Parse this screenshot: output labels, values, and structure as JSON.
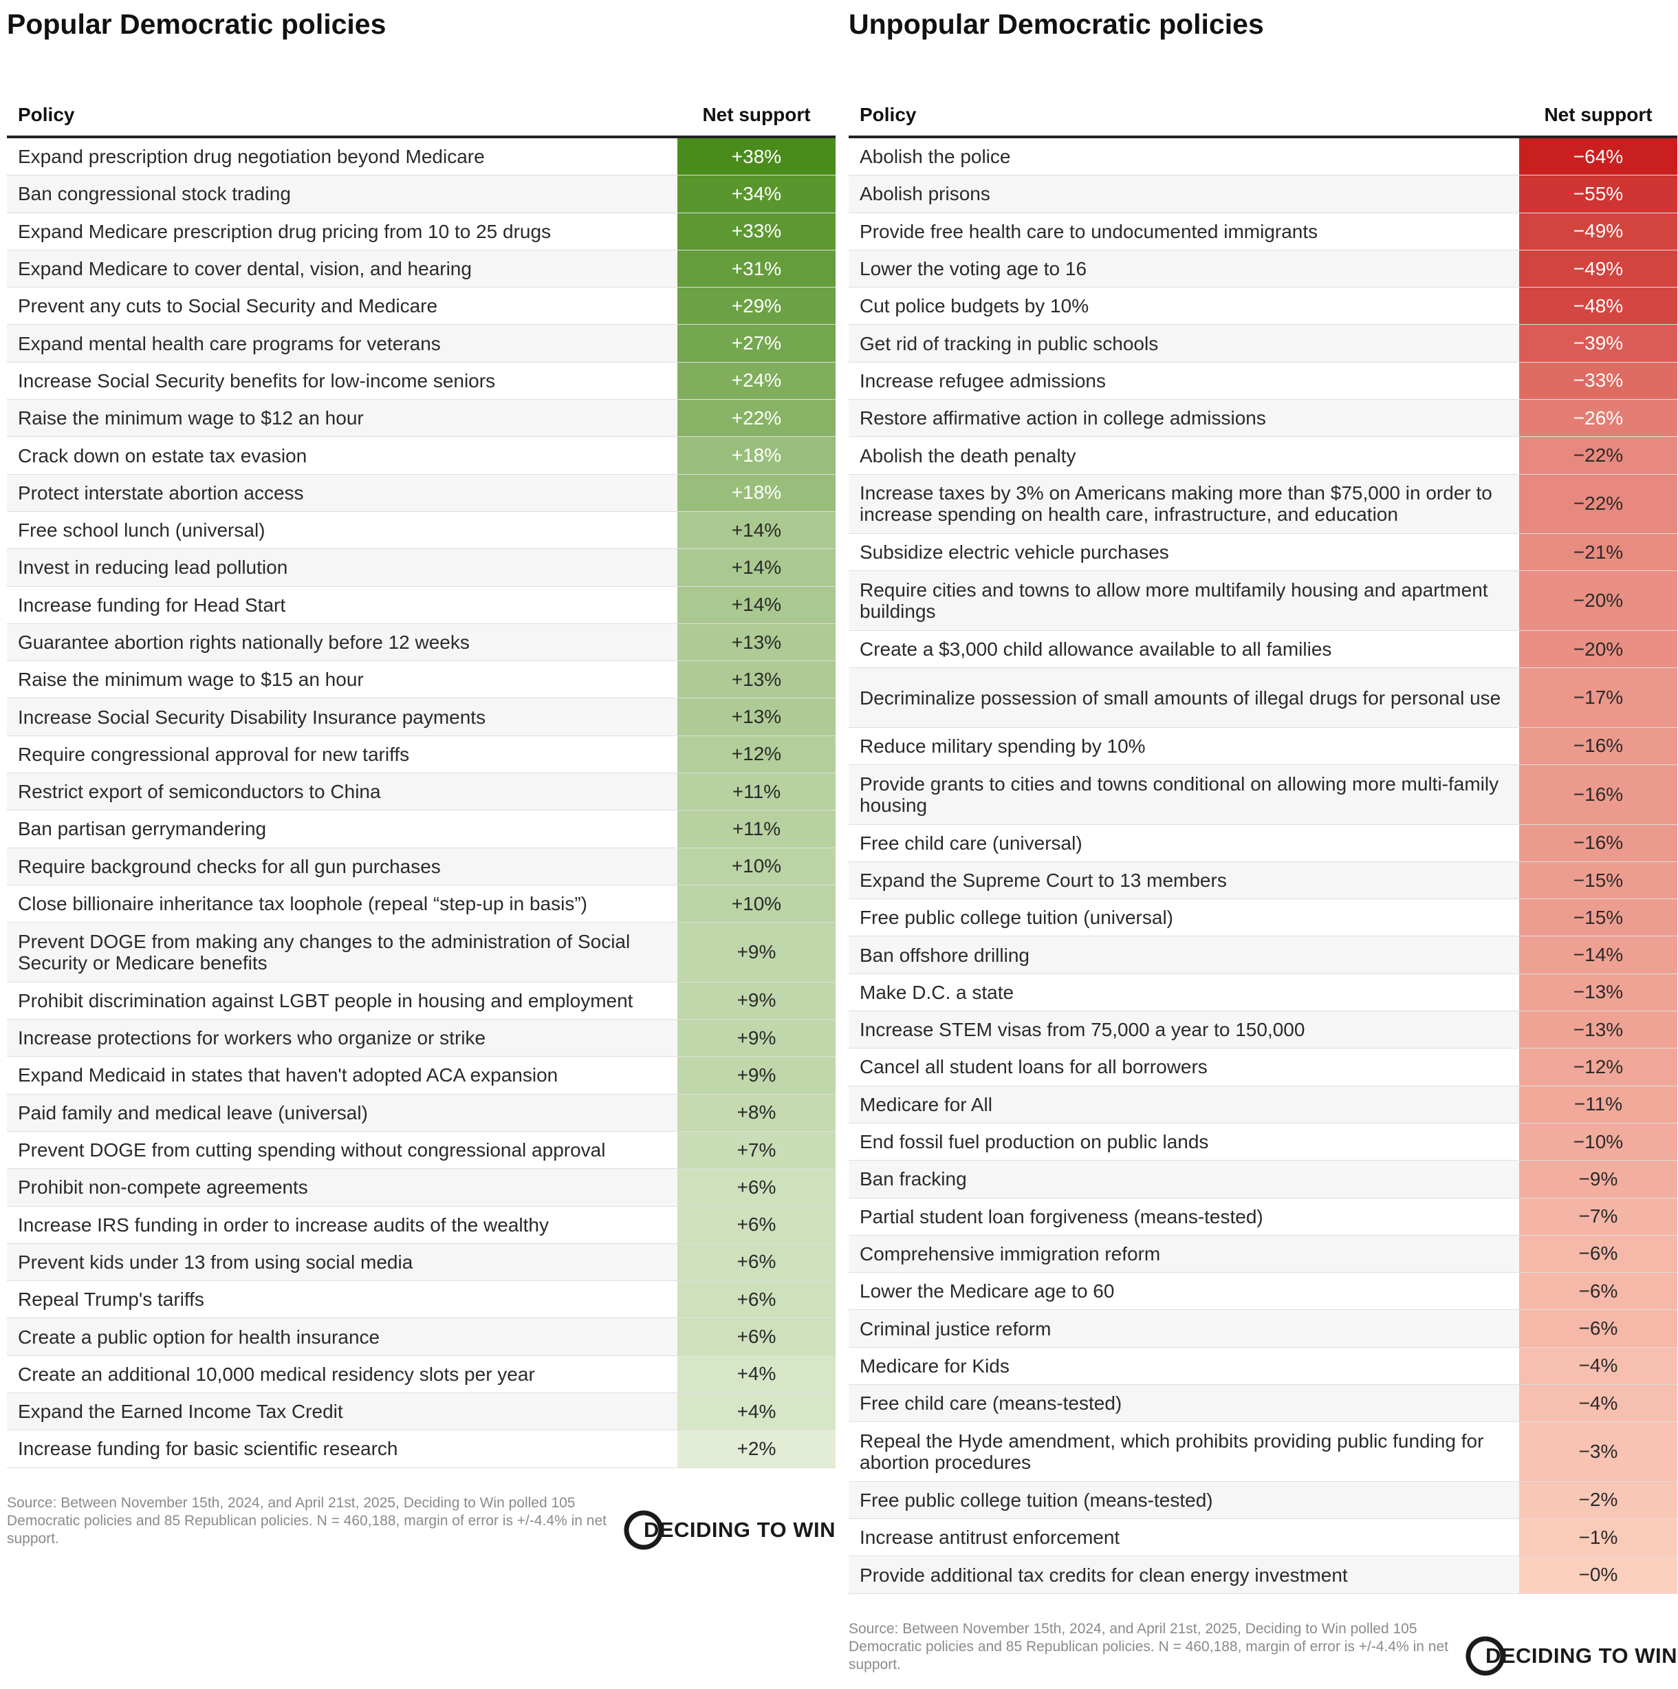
{
  "chart_data": [
    {
      "type": "table",
      "title": "Popular Democratic policies",
      "columns": [
        "Policy",
        "Net support"
      ],
      "rows": [
        {
          "policy": "Expand prescription drug negotiation beyond Medicare",
          "label": "+38%",
          "value": 38
        },
        {
          "policy": "Ban congressional stock trading",
          "label": "+34%",
          "value": 34
        },
        {
          "policy": "Expand Medicare prescription drug pricing from 10 to 25 drugs",
          "label": "+33%",
          "value": 33
        },
        {
          "policy": "Expand Medicare to cover dental, vision, and hearing",
          "label": "+31%",
          "value": 31
        },
        {
          "policy": "Prevent any cuts to Social Security and Medicare",
          "label": "+29%",
          "value": 29
        },
        {
          "policy": "Expand mental health care programs for veterans",
          "label": "+27%",
          "value": 27
        },
        {
          "policy": "Increase Social Security benefits for low-income seniors",
          "label": "+24%",
          "value": 24
        },
        {
          "policy": "Raise the minimum wage to $12 an hour",
          "label": "+22%",
          "value": 22
        },
        {
          "policy": "Crack down on estate tax evasion",
          "label": "+18%",
          "value": 18
        },
        {
          "policy": "Protect interstate abortion access",
          "label": "+18%",
          "value": 18
        },
        {
          "policy": "Free school lunch (universal)",
          "label": "+14%",
          "value": 14
        },
        {
          "policy": "Invest in reducing lead pollution",
          "label": "+14%",
          "value": 14
        },
        {
          "policy": "Increase funding for Head Start",
          "label": "+14%",
          "value": 14
        },
        {
          "policy": "Guarantee abortion rights nationally before 12 weeks",
          "label": "+13%",
          "value": 13
        },
        {
          "policy": "Raise the minimum wage to $15 an hour",
          "label": "+13%",
          "value": 13
        },
        {
          "policy": "Increase Social Security Disability Insurance payments",
          "label": "+13%",
          "value": 13
        },
        {
          "policy": "Require congressional approval for new tariffs",
          "label": "+12%",
          "value": 12
        },
        {
          "policy": "Restrict export of semiconductors to China",
          "label": "+11%",
          "value": 11
        },
        {
          "policy": "Ban partisan gerrymandering",
          "label": "+11%",
          "value": 11
        },
        {
          "policy": "Require background checks for all gun purchases",
          "label": "+10%",
          "value": 10
        },
        {
          "policy": "Close billionaire inheritance tax loophole (repeal “step-up in basis”)",
          "label": "+10%",
          "value": 10
        },
        {
          "policy": "Prevent DOGE from making any changes to the administration of Social Security or Medicare benefits",
          "label": "+9%",
          "value": 9,
          "tall": true
        },
        {
          "policy": "Prohibit discrimination against LGBT people in housing and employment",
          "label": "+9%",
          "value": 9
        },
        {
          "policy": "Increase protections for workers who organize or strike",
          "label": "+9%",
          "value": 9
        },
        {
          "policy": "Expand Medicaid in states that haven't adopted ACA expansion",
          "label": "+9%",
          "value": 9
        },
        {
          "policy": "Paid family and medical leave (universal)",
          "label": "+8%",
          "value": 8
        },
        {
          "policy": "Prevent DOGE from cutting spending without congressional approval",
          "label": "+7%",
          "value": 7
        },
        {
          "policy": "Prohibit non-compete agreements",
          "label": "+6%",
          "value": 6
        },
        {
          "policy": "Increase IRS funding in order to increase audits of the wealthy",
          "label": "+6%",
          "value": 6
        },
        {
          "policy": "Prevent kids under 13 from using social media",
          "label": "+6%",
          "value": 6
        },
        {
          "policy": "Repeal Trump's tariffs",
          "label": "+6%",
          "value": 6
        },
        {
          "policy": "Create a public option for health insurance",
          "label": "+6%",
          "value": 6
        },
        {
          "policy": "Create an additional 10,000 medical residency slots per year",
          "label": "+4%",
          "value": 4
        },
        {
          "policy": "Expand the Earned Income Tax Credit",
          "label": "+4%",
          "value": 4
        },
        {
          "policy": "Increase funding for basic scientific research",
          "label": "+2%",
          "value": 2
        }
      ],
      "color_scale": "green",
      "source": "Source: Between November 15th, 2024, and April 21st, 2025, Deciding to Win polled 105 Democratic policies and 85 Republican policies. N = 460,188, margin of error is +/-4.4% in net support.",
      "logo_text": "DECIDING TO WIN"
    },
    {
      "type": "table",
      "title": "Unpopular Democratic policies",
      "columns": [
        "Policy",
        "Net support"
      ],
      "rows": [
        {
          "policy": "Abolish the police",
          "label": "−64%",
          "value": -64
        },
        {
          "policy": "Abolish prisons",
          "label": "−55%",
          "value": -55
        },
        {
          "policy": "Provide free health care to undocumented immigrants",
          "label": "−49%",
          "value": -49
        },
        {
          "policy": "Lower the voting age to 16",
          "label": "−49%",
          "value": -49
        },
        {
          "policy": "Cut police budgets by 10%",
          "label": "−48%",
          "value": -48
        },
        {
          "policy": "Get rid of tracking in public schools",
          "label": "−39%",
          "value": -39
        },
        {
          "policy": "Increase refugee admissions",
          "label": "−33%",
          "value": -33
        },
        {
          "policy": "Restore affirmative action in college admissions",
          "label": "−26%",
          "value": -26
        },
        {
          "policy": "Abolish the death penalty",
          "label": "−22%",
          "value": -22
        },
        {
          "policy": "Increase taxes by 3% on Americans making more than $75,000 in order to increase spending on health care, infrastructure, and education",
          "label": "−22%",
          "value": -22,
          "tall": true
        },
        {
          "policy": "Subsidize electric vehicle purchases",
          "label": "−21%",
          "value": -21
        },
        {
          "policy": "Require cities and towns to allow more multifamily housing and apartment buildings",
          "label": "−20%",
          "value": -20,
          "tall": true
        },
        {
          "policy": "Create a $3,000 child allowance available to all families",
          "label": "−20%",
          "value": -20
        },
        {
          "policy": "Decriminalize possession of small amounts of illegal drugs for personal use",
          "label": "−17%",
          "value": -17,
          "tall": true
        },
        {
          "policy": "Reduce military spending by 10%",
          "label": "−16%",
          "value": -16
        },
        {
          "policy": "Provide grants to cities and towns conditional on allowing more multi-family housing",
          "label": "−16%",
          "value": -16,
          "tall": true
        },
        {
          "policy": "Free child care (universal)",
          "label": "−16%",
          "value": -16
        },
        {
          "policy": "Expand the Supreme Court to 13 members",
          "label": "−15%",
          "value": -15
        },
        {
          "policy": "Free public college tuition (universal)",
          "label": "−15%",
          "value": -15
        },
        {
          "policy": "Ban offshore drilling",
          "label": "−14%",
          "value": -14
        },
        {
          "policy": "Make D.C. a state",
          "label": "−13%",
          "value": -13
        },
        {
          "policy": "Increase STEM visas from 75,000 a year to 150,000",
          "label": "−13%",
          "value": -13
        },
        {
          "policy": "Cancel all student loans for all borrowers",
          "label": "−12%",
          "value": -12
        },
        {
          "policy": "Medicare for All",
          "label": "−11%",
          "value": -11
        },
        {
          "policy": "End fossil fuel production on public lands",
          "label": "−10%",
          "value": -10
        },
        {
          "policy": "Ban fracking",
          "label": "−9%",
          "value": -9
        },
        {
          "policy": "Partial student loan forgiveness (means-tested)",
          "label": "−7%",
          "value": -7
        },
        {
          "policy": "Comprehensive immigration reform",
          "label": "−6%",
          "value": -6
        },
        {
          "policy": "Lower the Medicare age to 60",
          "label": "−6%",
          "value": -6
        },
        {
          "policy": "Criminal justice reform",
          "label": "−6%",
          "value": -6
        },
        {
          "policy": "Medicare for Kids",
          "label": "−4%",
          "value": -4
        },
        {
          "policy": "Free child care (means-tested)",
          "label": "−4%",
          "value": -4
        },
        {
          "policy": "Repeal the Hyde amendment, which prohibits providing public funding for abortion procedures",
          "label": "−3%",
          "value": -3,
          "tall": true
        },
        {
          "policy": "Free public college tuition (means-tested)",
          "label": "−2%",
          "value": -2
        },
        {
          "policy": "Increase antitrust enforcement",
          "label": "−1%",
          "value": -1
        },
        {
          "policy": "Provide additional tax credits for clean energy investment",
          "label": "−0%",
          "value": 0
        }
      ],
      "color_scale": "red",
      "source": "Source: Between November 15th, 2024, and April 21st, 2025, Deciding to Win polled 105 Democratic policies and 85 Republican policies. N = 460,188, margin of error is +/-4.4% in net support.",
      "logo_text": "DECIDING TO WIN"
    }
  ],
  "colors": {
    "green_strong": "#4a8c1c",
    "green_light": "#f1f6e6",
    "red_strong": "#c9201f",
    "red_light": "#fcd0be"
  }
}
